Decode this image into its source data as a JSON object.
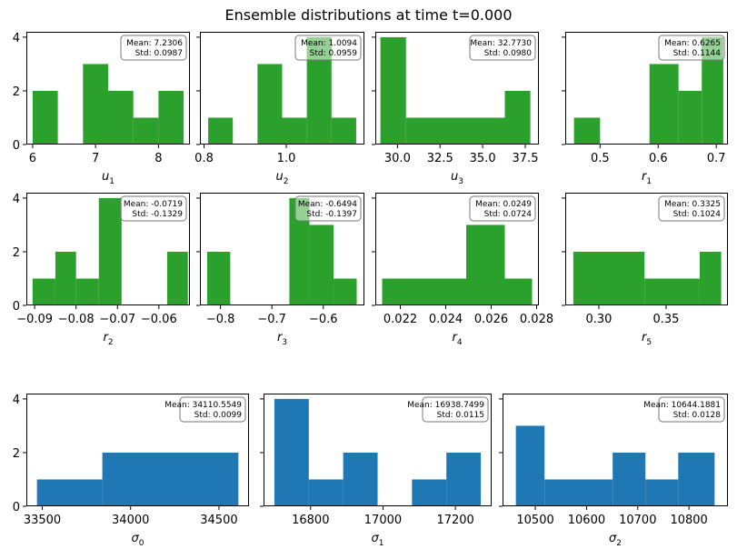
{
  "figure": {
    "title": "Ensemble distributions at time t=0.000"
  },
  "colors": {
    "green": "#2ca02c",
    "blue": "#1f77b4"
  },
  "chart_data": [
    {
      "type": "bar",
      "var": "u",
      "sub": "1",
      "xlabel": "u_1",
      "color": "green",
      "bins": [
        [
          6.0,
          6.4,
          2
        ],
        [
          6.4,
          6.8,
          0
        ],
        [
          6.8,
          7.2,
          3
        ],
        [
          7.2,
          7.6,
          2
        ],
        [
          7.6,
          8.0,
          1
        ],
        [
          8.0,
          8.4,
          2
        ]
      ],
      "xlim": [
        5.9,
        8.5
      ],
      "xticks": [
        6,
        7,
        8
      ],
      "xtick_labels": [
        "6",
        "7",
        "8"
      ],
      "ylim": [
        0,
        4.2
      ],
      "yticks": [
        0,
        2,
        4
      ],
      "show_yticks": true,
      "mean": "Mean: 7.2306",
      "std": "Std: 0.0987"
    },
    {
      "type": "bar",
      "var": "u",
      "sub": "2",
      "xlabel": "u_2",
      "color": "green",
      "bins": [
        [
          0.81,
          0.87,
          1
        ],
        [
          0.87,
          0.93,
          0
        ],
        [
          0.93,
          0.99,
          3
        ],
        [
          0.99,
          1.05,
          1
        ],
        [
          1.05,
          1.11,
          4
        ],
        [
          1.11,
          1.17,
          1
        ]
      ],
      "xlim": [
        0.79,
        1.19
      ],
      "xticks": [
        0.8,
        1.0
      ],
      "xtick_labels": [
        "0.8",
        "1.0"
      ],
      "ylim": [
        0,
        4.2
      ],
      "yticks": [
        0,
        2,
        4
      ],
      "show_yticks": false,
      "mean": "Mean: 1.0094",
      "std": "Std: 0.0959"
    },
    {
      "type": "bar",
      "var": "u",
      "sub": "3",
      "xlabel": "u_3",
      "color": "green",
      "bins": [
        [
          29.0,
          30.5,
          4
        ],
        [
          30.5,
          36.3,
          1
        ],
        [
          36.3,
          37.8,
          2
        ]
      ],
      "xlim": [
        28.7,
        38.3
      ],
      "xticks": [
        30,
        32.5,
        35,
        37.5
      ],
      "xtick_labels": [
        "30.0",
        "32.5",
        "35.0",
        "37.5"
      ],
      "ylim": [
        0,
        4.2
      ],
      "yticks": [
        0,
        2,
        4
      ],
      "show_yticks": false,
      "mean": "Mean: 32.7730",
      "std": "Std: 0.0980"
    },
    {
      "type": "bar",
      "var": "r",
      "sub": "1",
      "xlabel": "r_1",
      "color": "green",
      "bins": [
        [
          0.455,
          0.5,
          1
        ],
        [
          0.5,
          0.585,
          0
        ],
        [
          0.585,
          0.635,
          3
        ],
        [
          0.635,
          0.675,
          2
        ],
        [
          0.675,
          0.712,
          4
        ]
      ],
      "xlim": [
        0.44,
        0.72
      ],
      "xticks": [
        0.5,
        0.6,
        0.7
      ],
      "xtick_labels": [
        "0.5",
        "0.6",
        "0.7"
      ],
      "ylim": [
        0,
        4.2
      ],
      "yticks": [
        0,
        2,
        4
      ],
      "show_yticks": false,
      "mean": "Mean: 0.6265",
      "std": "Std: 0.1144"
    },
    {
      "type": "bar",
      "var": "r",
      "sub": "2",
      "xlabel": "r_2",
      "color": "green",
      "bins": [
        [
          -0.0905,
          -0.085,
          1
        ],
        [
          -0.085,
          -0.08,
          2
        ],
        [
          -0.08,
          -0.0745,
          1
        ],
        [
          -0.0745,
          -0.069,
          4
        ],
        [
          -0.069,
          -0.058,
          0
        ],
        [
          -0.058,
          -0.053,
          2
        ]
      ],
      "xlim": [
        -0.092,
        -0.0525
      ],
      "xticks": [
        -0.09,
        -0.08,
        -0.07,
        -0.06
      ],
      "xtick_labels": [
        "−0.09",
        "−0.08",
        "−0.07",
        "−0.06"
      ],
      "ylim": [
        0,
        4.2
      ],
      "yticks": [
        0,
        2,
        4
      ],
      "show_yticks": true,
      "mean": "Mean: -0.0719",
      "std": "Std: -0.1329"
    },
    {
      "type": "bar",
      "var": "r",
      "sub": "3",
      "xlabel": "r_3",
      "color": "green",
      "bins": [
        [
          -0.826,
          -0.781,
          2
        ],
        [
          -0.781,
          -0.666,
          0
        ],
        [
          -0.666,
          -0.627,
          4
        ],
        [
          -0.627,
          -0.58,
          3
        ],
        [
          -0.58,
          -0.535,
          1
        ]
      ],
      "xlim": [
        -0.84,
        -0.52
      ],
      "xticks": [
        -0.8,
        -0.7,
        -0.6
      ],
      "xtick_labels": [
        "−0.8",
        "−0.7",
        "−0.6"
      ],
      "ylim": [
        0,
        4.2
      ],
      "yticks": [
        0,
        2,
        4
      ],
      "show_yticks": false,
      "mean": "Mean: -0.6494",
      "std": "Std: -0.1397"
    },
    {
      "type": "bar",
      "var": "r",
      "sub": "4",
      "xlabel": "r_4",
      "color": "green",
      "bins": [
        [
          0.0212,
          0.0249,
          1
        ],
        [
          0.0249,
          0.0266,
          3
        ],
        [
          0.0266,
          0.0278,
          1
        ]
      ],
      "xlim": [
        0.0209,
        0.0281
      ],
      "xticks": [
        0.022,
        0.024,
        0.026,
        0.028
      ],
      "xtick_labels": [
        "0.022",
        "0.024",
        "0.026",
        "0.028"
      ],
      "ylim": [
        0,
        4.2
      ],
      "yticks": [
        0,
        2,
        4
      ],
      "show_yticks": false,
      "mean": "Mean: 0.0249",
      "std": "Std: 0.0724"
    },
    {
      "type": "bar",
      "var": "r",
      "sub": "5",
      "xlabel": "r_5",
      "color": "green",
      "bins": [
        [
          0.281,
          0.334,
          2
        ],
        [
          0.334,
          0.375,
          1
        ],
        [
          0.375,
          0.391,
          2
        ]
      ],
      "xlim": [
        0.275,
        0.396
      ],
      "xticks": [
        0.3,
        0.35
      ],
      "xtick_labels": [
        "0.30",
        "0.35"
      ],
      "ylim": [
        0,
        4.2
      ],
      "yticks": [
        0,
        2,
        4
      ],
      "show_yticks": false,
      "mean": "Mean: 0.3325",
      "std": "Std: 0.1024"
    },
    {
      "type": "bar",
      "var": "σ",
      "sub": "0",
      "xlabel": "σ_0",
      "color": "blue",
      "bins": [
        [
          33470,
          33840,
          1
        ],
        [
          33840,
          34610,
          2
        ]
      ],
      "xlim": [
        33410,
        34670
      ],
      "xticks": [
        33500,
        34000,
        34500
      ],
      "xtick_labels": [
        "33500",
        "34000",
        "34500"
      ],
      "ylim": [
        0,
        4.2
      ],
      "yticks": [
        0,
        2,
        4
      ],
      "show_yticks": true,
      "mean": "Mean: 34110.5549",
      "std": "Std: 0.0099"
    },
    {
      "type": "bar",
      "var": "σ",
      "sub": "1",
      "xlabel": "σ_1",
      "color": "blue",
      "bins": [
        [
          16700,
          16795,
          4
        ],
        [
          16795,
          16890,
          1
        ],
        [
          16890,
          16985,
          2
        ],
        [
          16985,
          17080,
          0
        ],
        [
          17080,
          17175,
          1
        ],
        [
          17175,
          17270,
          2
        ]
      ],
      "xlim": [
        16670,
        17300
      ],
      "xticks": [
        16800,
        17000,
        17200
      ],
      "xtick_labels": [
        "16800",
        "17000",
        "17200"
      ],
      "ylim": [
        0,
        4.2
      ],
      "yticks": [
        0,
        2,
        4
      ],
      "show_yticks": false,
      "mean": "Mean: 16938.7499",
      "std": "Std: 0.0115"
    },
    {
      "type": "bar",
      "var": "σ",
      "sub": "2",
      "xlabel": "σ_2",
      "color": "blue",
      "bins": [
        [
          10462,
          10518,
          3
        ],
        [
          10518,
          10651,
          1
        ],
        [
          10651,
          10715,
          2
        ],
        [
          10715,
          10779,
          1
        ],
        [
          10779,
          10850,
          2
        ]
      ],
      "xlim": [
        10436,
        10876
      ],
      "xticks": [
        10500,
        10600,
        10700,
        10800
      ],
      "xtick_labels": [
        "10500",
        "10600",
        "10700",
        "10800"
      ],
      "ylim": [
        0,
        4.2
      ],
      "yticks": [
        0,
        2,
        4
      ],
      "show_yticks": false,
      "mean": "Mean: 10644.1881",
      "std": "Std: 0.0128"
    }
  ]
}
